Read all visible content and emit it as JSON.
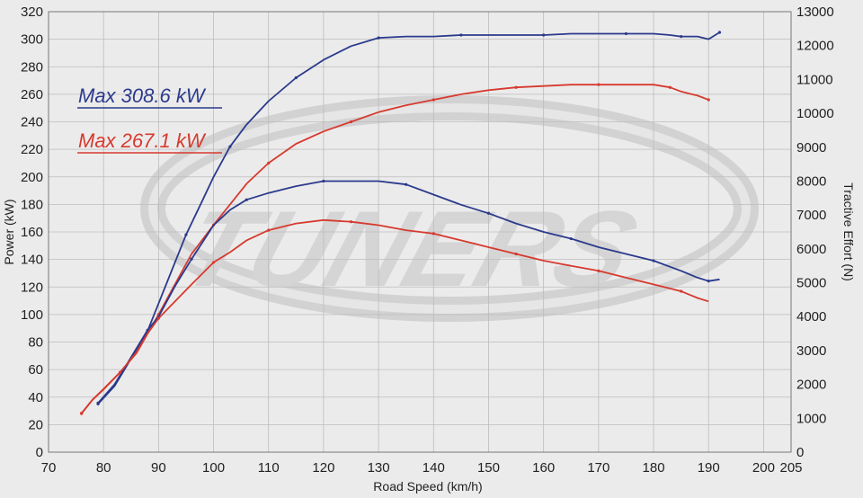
{
  "chart_data": {
    "type": "line",
    "title": "",
    "xlabel": "Road Speed (km/h)",
    "ylabel": "Power (kW)",
    "y2label": "Tractive Effort (N)",
    "xlim": [
      70,
      205
    ],
    "ylim": [
      0,
      320
    ],
    "y2lim": [
      0,
      13000
    ],
    "xticks": [
      "70",
      "80",
      "90",
      "100",
      "110",
      "120",
      "130",
      "140",
      "150",
      "160",
      "170",
      "180",
      "190",
      "200",
      "205"
    ],
    "xtick_values": [
      70,
      80,
      90,
      100,
      110,
      120,
      130,
      140,
      150,
      160,
      170,
      180,
      190,
      200,
      205
    ],
    "yticks": [
      0,
      20,
      40,
      60,
      80,
      100,
      120,
      140,
      160,
      180,
      200,
      220,
      240,
      260,
      280,
      300,
      320
    ],
    "y2ticks": [
      0,
      1000,
      2000,
      3000,
      4000,
      5000,
      6000,
      7000,
      8000,
      9000,
      10000,
      11000,
      12000,
      13000
    ],
    "grid": true,
    "annotations": [
      {
        "text": "Max 308.6 kW",
        "color": "#2a3a8c"
      },
      {
        "text": "Max 267.1 kW",
        "color": "#d63a2f"
      }
    ],
    "watermark": "TUNERS",
    "series": [
      {
        "color": "#2a3a8c",
        "axis": "left",
        "kind": "power",
        "x": [
          79,
          82,
          85,
          88,
          90,
          92,
          95,
          98,
          100,
          103,
          106,
          110,
          115,
          120,
          125,
          130,
          135,
          140,
          145,
          150,
          155,
          160,
          165,
          170,
          175,
          180,
          183,
          185,
          188,
          190,
          192
        ],
        "y": [
          35,
          48,
          68,
          88,
          108,
          128,
          158,
          183,
          200,
          222,
          238,
          255,
          272,
          285,
          295,
          301,
          302,
          302,
          303,
          303,
          303,
          303,
          304,
          304,
          304,
          304,
          303,
          302,
          302,
          300,
          305
        ]
      },
      {
        "color": "#d63a2f",
        "axis": "left",
        "kind": "power",
        "x": [
          76,
          78,
          80,
          83,
          86,
          88,
          90,
          93,
          96,
          100,
          103,
          106,
          110,
          115,
          120,
          125,
          130,
          135,
          140,
          145,
          150,
          155,
          160,
          165,
          170,
          175,
          180,
          183,
          185,
          188,
          190
        ],
        "y": [
          28,
          38,
          46,
          58,
          72,
          86,
          100,
          122,
          144,
          165,
          180,
          195,
          210,
          224,
          233,
          240,
          247,
          252,
          256,
          260,
          263,
          265,
          266,
          267,
          267,
          267,
          267,
          265,
          262,
          259,
          256
        ]
      },
      {
        "color": "#2a3a8c",
        "axis": "right",
        "kind": "tractive",
        "x": [
          79,
          82,
          85,
          88,
          90,
          93,
          96,
          100,
          103,
          106,
          110,
          115,
          120,
          125,
          130,
          135,
          140,
          145,
          150,
          155,
          160,
          165,
          170,
          175,
          180,
          185,
          188,
          190,
          192
        ],
        "y": [
          1450,
          2000,
          2800,
          3600,
          4000,
          4900,
          5700,
          6700,
          7150,
          7450,
          7650,
          7850,
          8000,
          8000,
          8000,
          7900,
          7600,
          7300,
          7050,
          6750,
          6500,
          6300,
          6050,
          5850,
          5650,
          5350,
          5150,
          5050,
          5100
        ]
      },
      {
        "color": "#d63a2f",
        "axis": "right",
        "kind": "tractive",
        "x": [
          76,
          78,
          80,
          83,
          86,
          88,
          90,
          93,
          96,
          100,
          103,
          106,
          110,
          115,
          120,
          125,
          130,
          135,
          140,
          145,
          150,
          155,
          160,
          165,
          170,
          175,
          180,
          185,
          188,
          190
        ],
        "y": [
          1150,
          1550,
          1850,
          2350,
          2950,
          3500,
          3950,
          4450,
          4950,
          5600,
          5900,
          6250,
          6550,
          6750,
          6850,
          6800,
          6700,
          6550,
          6450,
          6250,
          6050,
          5850,
          5650,
          5500,
          5350,
          5150,
          4950,
          4750,
          4550,
          4450
        ]
      }
    ]
  }
}
